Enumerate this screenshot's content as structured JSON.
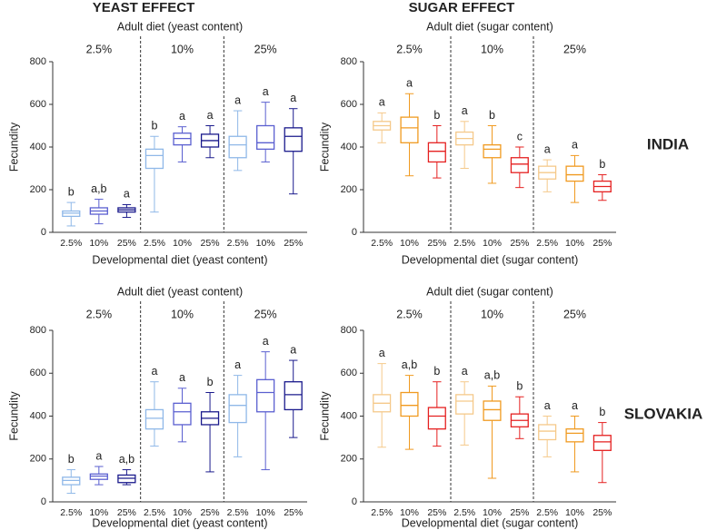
{
  "column_titles": [
    "YEAST EFFECT",
    "SUGAR EFFECT"
  ],
  "row_labels": [
    "INDIA",
    "SLOVAKIA"
  ],
  "chart_data": [
    {
      "type": "box",
      "x_group_title": "Adult diet (yeast content)",
      "groups": [
        "2.5%",
        "10%",
        "25%"
      ],
      "categories": [
        "2.5%",
        "10%",
        "25%",
        "2.5%",
        "10%",
        "25%",
        "2.5%",
        "10%",
        "25%"
      ],
      "x_title": "Developmental diet (yeast content)",
      "y_title": "Fecundity",
      "ylim": [
        0,
        800
      ],
      "yticks": [
        0,
        200,
        400,
        600,
        800
      ],
      "colors": [
        "#8fb8e8",
        "#5a5fd0",
        "#1a1a8c",
        "#8fb8e8",
        "#5a5fd0",
        "#1a1a8c",
        "#8fb8e8",
        "#5a5fd0",
        "#1a1a8c"
      ],
      "boxes": [
        {
          "min": 30,
          "q1": 75,
          "median": 90,
          "q3": 100,
          "max": 140
        },
        {
          "min": 40,
          "q1": 85,
          "median": 100,
          "q3": 115,
          "max": 155
        },
        {
          "min": 70,
          "q1": 95,
          "median": 105,
          "q3": 115,
          "max": 130
        },
        {
          "min": 95,
          "q1": 300,
          "median": 360,
          "q3": 390,
          "max": 450
        },
        {
          "min": 330,
          "q1": 410,
          "median": 440,
          "q3": 465,
          "max": 495
        },
        {
          "min": 350,
          "q1": 400,
          "median": 430,
          "q3": 460,
          "max": 500
        },
        {
          "min": 290,
          "q1": 350,
          "median": 410,
          "q3": 450,
          "max": 570
        },
        {
          "min": 330,
          "q1": 390,
          "median": 420,
          "q3": 500,
          "max": 610
        },
        {
          "min": 180,
          "q1": 380,
          "median": 450,
          "q3": 490,
          "max": 580
        }
      ],
      "letters": [
        "b",
        "a,b",
        "a",
        "b",
        "a",
        "a",
        "a",
        "a",
        "a"
      ]
    },
    {
      "type": "box",
      "x_group_title": "Adult diet (sugar content)",
      "groups": [
        "2.5%",
        "10%",
        "25%"
      ],
      "categories": [
        "2.5%",
        "10%",
        "25%",
        "2.5%",
        "10%",
        "25%",
        "2.5%",
        "10%",
        "25%"
      ],
      "x_title": "Developmental diet (sugar content)",
      "y_title": "Fecundity",
      "ylim": [
        0,
        800
      ],
      "yticks": [
        0,
        200,
        400,
        600,
        800
      ],
      "colors": [
        "#f5c98a",
        "#f09a20",
        "#e52020",
        "#f5c98a",
        "#f09a20",
        "#e52020",
        "#f5c98a",
        "#f09a20",
        "#e52020"
      ],
      "boxes": [
        {
          "min": 420,
          "q1": 480,
          "median": 500,
          "q3": 520,
          "max": 560
        },
        {
          "min": 265,
          "q1": 420,
          "median": 490,
          "q3": 540,
          "max": 650
        },
        {
          "min": 255,
          "q1": 330,
          "median": 380,
          "q3": 420,
          "max": 500
        },
        {
          "min": 300,
          "q1": 410,
          "median": 440,
          "q3": 470,
          "max": 520
        },
        {
          "min": 230,
          "q1": 350,
          "median": 390,
          "q3": 410,
          "max": 500
        },
        {
          "min": 210,
          "q1": 280,
          "median": 320,
          "q3": 350,
          "max": 400
        },
        {
          "min": 190,
          "q1": 250,
          "median": 280,
          "q3": 310,
          "max": 340
        },
        {
          "min": 140,
          "q1": 240,
          "median": 270,
          "q3": 310,
          "max": 360
        },
        {
          "min": 150,
          "q1": 190,
          "median": 215,
          "q3": 240,
          "max": 270
        }
      ],
      "letters": [
        "a",
        "a",
        "b",
        "a",
        "b",
        "c",
        "a",
        "a",
        "b"
      ]
    },
    {
      "type": "box",
      "x_group_title": "Adult diet (yeast content)",
      "groups": [
        "2.5%",
        "10%",
        "25%"
      ],
      "categories": [
        "2.5%",
        "10%",
        "25%",
        "2.5%",
        "10%",
        "25%",
        "2.5%",
        "10%",
        "25%"
      ],
      "x_title": "Developmental diet (yeast content)",
      "y_title": "Fecundity",
      "ylim": [
        0,
        800
      ],
      "yticks": [
        0,
        200,
        400,
        600,
        800
      ],
      "colors": [
        "#8fb8e8",
        "#5a5fd0",
        "#1a1a8c",
        "#8fb8e8",
        "#5a5fd0",
        "#1a1a8c",
        "#8fb8e8",
        "#5a5fd0",
        "#1a1a8c"
      ],
      "boxes": [
        {
          "min": 40,
          "q1": 80,
          "median": 100,
          "q3": 115,
          "max": 150
        },
        {
          "min": 80,
          "q1": 105,
          "median": 120,
          "q3": 130,
          "max": 165
        },
        {
          "min": 80,
          "q1": 90,
          "median": 110,
          "q3": 125,
          "max": 150
        },
        {
          "min": 260,
          "q1": 340,
          "median": 390,
          "q3": 430,
          "max": 560
        },
        {
          "min": 280,
          "q1": 360,
          "median": 420,
          "q3": 460,
          "max": 530
        },
        {
          "min": 140,
          "q1": 360,
          "median": 390,
          "q3": 420,
          "max": 510
        },
        {
          "min": 210,
          "q1": 370,
          "median": 450,
          "q3": 500,
          "max": 590
        },
        {
          "min": 150,
          "q1": 420,
          "median": 510,
          "q3": 570,
          "max": 700
        },
        {
          "min": 300,
          "q1": 430,
          "median": 500,
          "q3": 560,
          "max": 660
        }
      ],
      "letters": [
        "b",
        "a",
        "a,b",
        "a",
        "a",
        "b",
        "a",
        "a",
        "a"
      ]
    },
    {
      "type": "box",
      "x_group_title": "Adult diet (sugar content)",
      "groups": [
        "2.5%",
        "10%",
        "25%"
      ],
      "categories": [
        "2.5%",
        "10%",
        "25%",
        "2.5%",
        "10%",
        "25%",
        "2.5%",
        "10%",
        "25%"
      ],
      "x_title": "Developmental diet (sugar content)",
      "y_title": "Fecundity",
      "ylim": [
        0,
        800
      ],
      "yticks": [
        0,
        200,
        400,
        600,
        800
      ],
      "colors": [
        "#f5c98a",
        "#f09a20",
        "#e52020",
        "#f5c98a",
        "#f09a20",
        "#e52020",
        "#f5c98a",
        "#f09a20",
        "#e52020"
      ],
      "boxes": [
        {
          "min": 255,
          "q1": 420,
          "median": 460,
          "q3": 500,
          "max": 645
        },
        {
          "min": 245,
          "q1": 400,
          "median": 450,
          "q3": 510,
          "max": 590
        },
        {
          "min": 260,
          "q1": 340,
          "median": 400,
          "q3": 440,
          "max": 560
        },
        {
          "min": 265,
          "q1": 410,
          "median": 470,
          "q3": 500,
          "max": 560
        },
        {
          "min": 110,
          "q1": 380,
          "median": 430,
          "q3": 470,
          "max": 540
        },
        {
          "min": 295,
          "q1": 350,
          "median": 380,
          "q3": 410,
          "max": 490
        },
        {
          "min": 210,
          "q1": 290,
          "median": 330,
          "q3": 360,
          "max": 400
        },
        {
          "min": 140,
          "q1": 280,
          "median": 320,
          "q3": 340,
          "max": 400
        },
        {
          "min": 90,
          "q1": 240,
          "median": 280,
          "q3": 310,
          "max": 370
        }
      ],
      "letters": [
        "a",
        "a,b",
        "b",
        "a",
        "a,b",
        "b",
        "a",
        "a",
        "b"
      ]
    }
  ]
}
